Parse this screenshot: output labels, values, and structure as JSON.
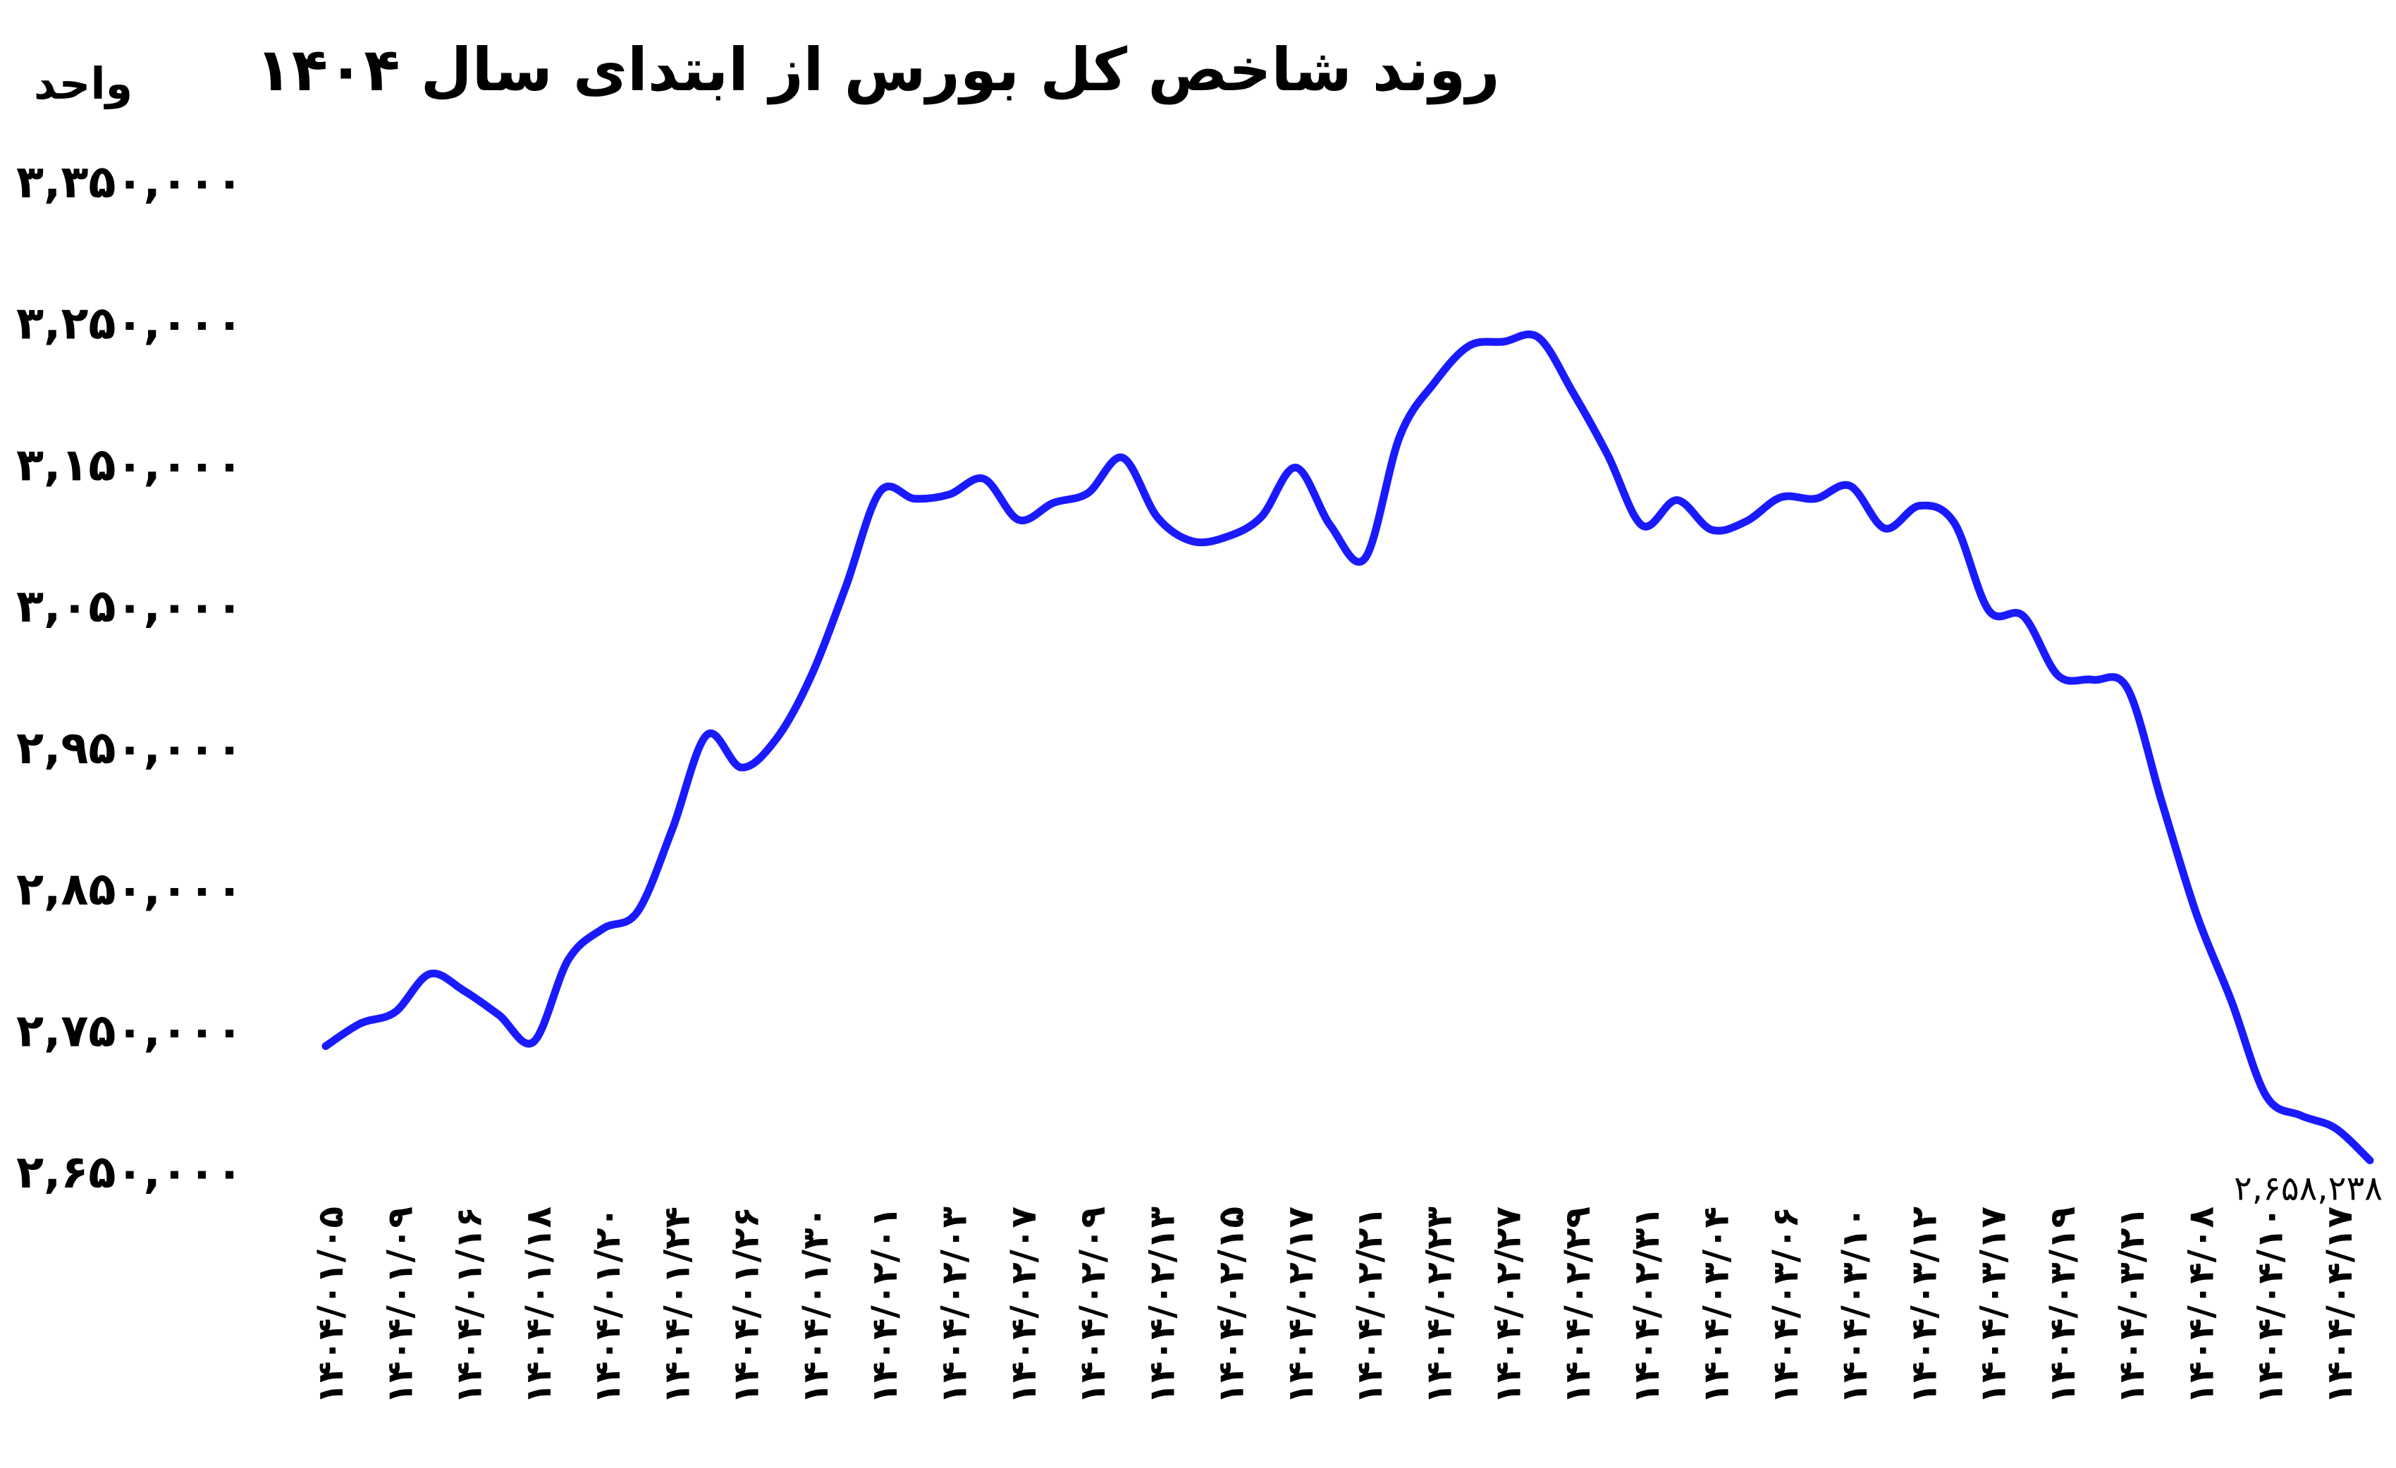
{
  "chart_data": {
    "type": "line",
    "title": "روند شاخص کل بورس از ابتدای سال ۱۴۰۴",
    "ylabel": "واحد",
    "xlabel": "",
    "ylim": [
      2650000,
      3350000
    ],
    "yticks": [
      "۳,۳۵۰,۰۰۰",
      "۳,۲۵۰,۰۰۰",
      "۳,۱۵۰,۰۰۰",
      "۳,۰۵۰,۰۰۰",
      "۲,۹۵۰,۰۰۰",
      "۲,۸۵۰,۰۰۰",
      "۲,۷۵۰,۰۰۰",
      "۲,۶۵۰,۰۰۰"
    ],
    "ytick_values": [
      3350000,
      3250000,
      3150000,
      3050000,
      2950000,
      2850000,
      2750000,
      2650000
    ],
    "grid": false,
    "legend": "none",
    "line_color": "#1a1aff",
    "x_tick_labels": [
      "۱۴۰۴/۰۱/۰۵",
      "۱۴۰۴/۰۱/۰۹",
      "۱۴۰۴/۰۱/۱۶",
      "۱۴۰۴/۰۱/۱۸",
      "۱۴۰۴/۰۱/۲۰",
      "۱۴۰۴/۰۱/۲۴",
      "۱۴۰۴/۰۱/۲۶",
      "۱۴۰۴/۰۱/۳۰",
      "۱۴۰۴/۰۲/۰۱",
      "۱۴۰۴/۰۲/۰۳",
      "۱۴۰۴/۰۲/۰۷",
      "۱۴۰۴/۰۲/۰۹",
      "۱۴۰۴/۰۲/۱۳",
      "۱۴۰۴/۰۲/۱۵",
      "۱۴۰۴/۰۲/۱۷",
      "۱۴۰۴/۰۲/۲۱",
      "۱۴۰۴/۰۲/۲۳",
      "۱۴۰۴/۰۲/۲۷",
      "۱۴۰۴/۰۲/۲۹",
      "۱۴۰۴/۰۲/۳۱",
      "۱۴۰۴/۰۳/۰۴",
      "۱۴۰۴/۰۳/۰۶",
      "۱۴۰۴/۰۳/۱۰",
      "۱۴۰۴/۰۳/۱۲",
      "۱۴۰۴/۰۳/۱۷",
      "۱۴۰۴/۰۳/۱۹",
      "۱۴۰۴/۰۳/۲۱",
      "۱۴۰۴/۰۴/۰۸",
      "۱۴۰۴/۰۴/۱۰",
      "۱۴۰۴/۰۴/۱۷"
    ],
    "values": [
      2739000,
      2755000,
      2763000,
      2790000,
      2778000,
      2761000,
      2742000,
      2800000,
      2822000,
      2834000,
      2892000,
      2959000,
      2936000,
      2956000,
      3000000,
      3063000,
      3131000,
      3126000,
      3129000,
      3140000,
      3111000,
      3123000,
      3130000,
      3155000,
      3113000,
      3096000,
      3099000,
      3113000,
      3148000,
      3107000,
      3084000,
      3170000,
      3208000,
      3234000,
      3237000,
      3240000,
      3201000,
      3157000,
      3107000,
      3125000,
      3104000,
      3110000,
      3127000,
      3126000,
      3135000,
      3105000,
      3121000,
      3109000,
      3047000,
      3043000,
      3001000,
      2998000,
      2992000,
      2911000,
      2832000,
      2771000,
      2704000,
      2690000,
      2681000,
      2658238
    ],
    "annotations": [
      {
        "label": "۲,۶۵۸,۲۳۸",
        "target": "last-point"
      }
    ]
  }
}
